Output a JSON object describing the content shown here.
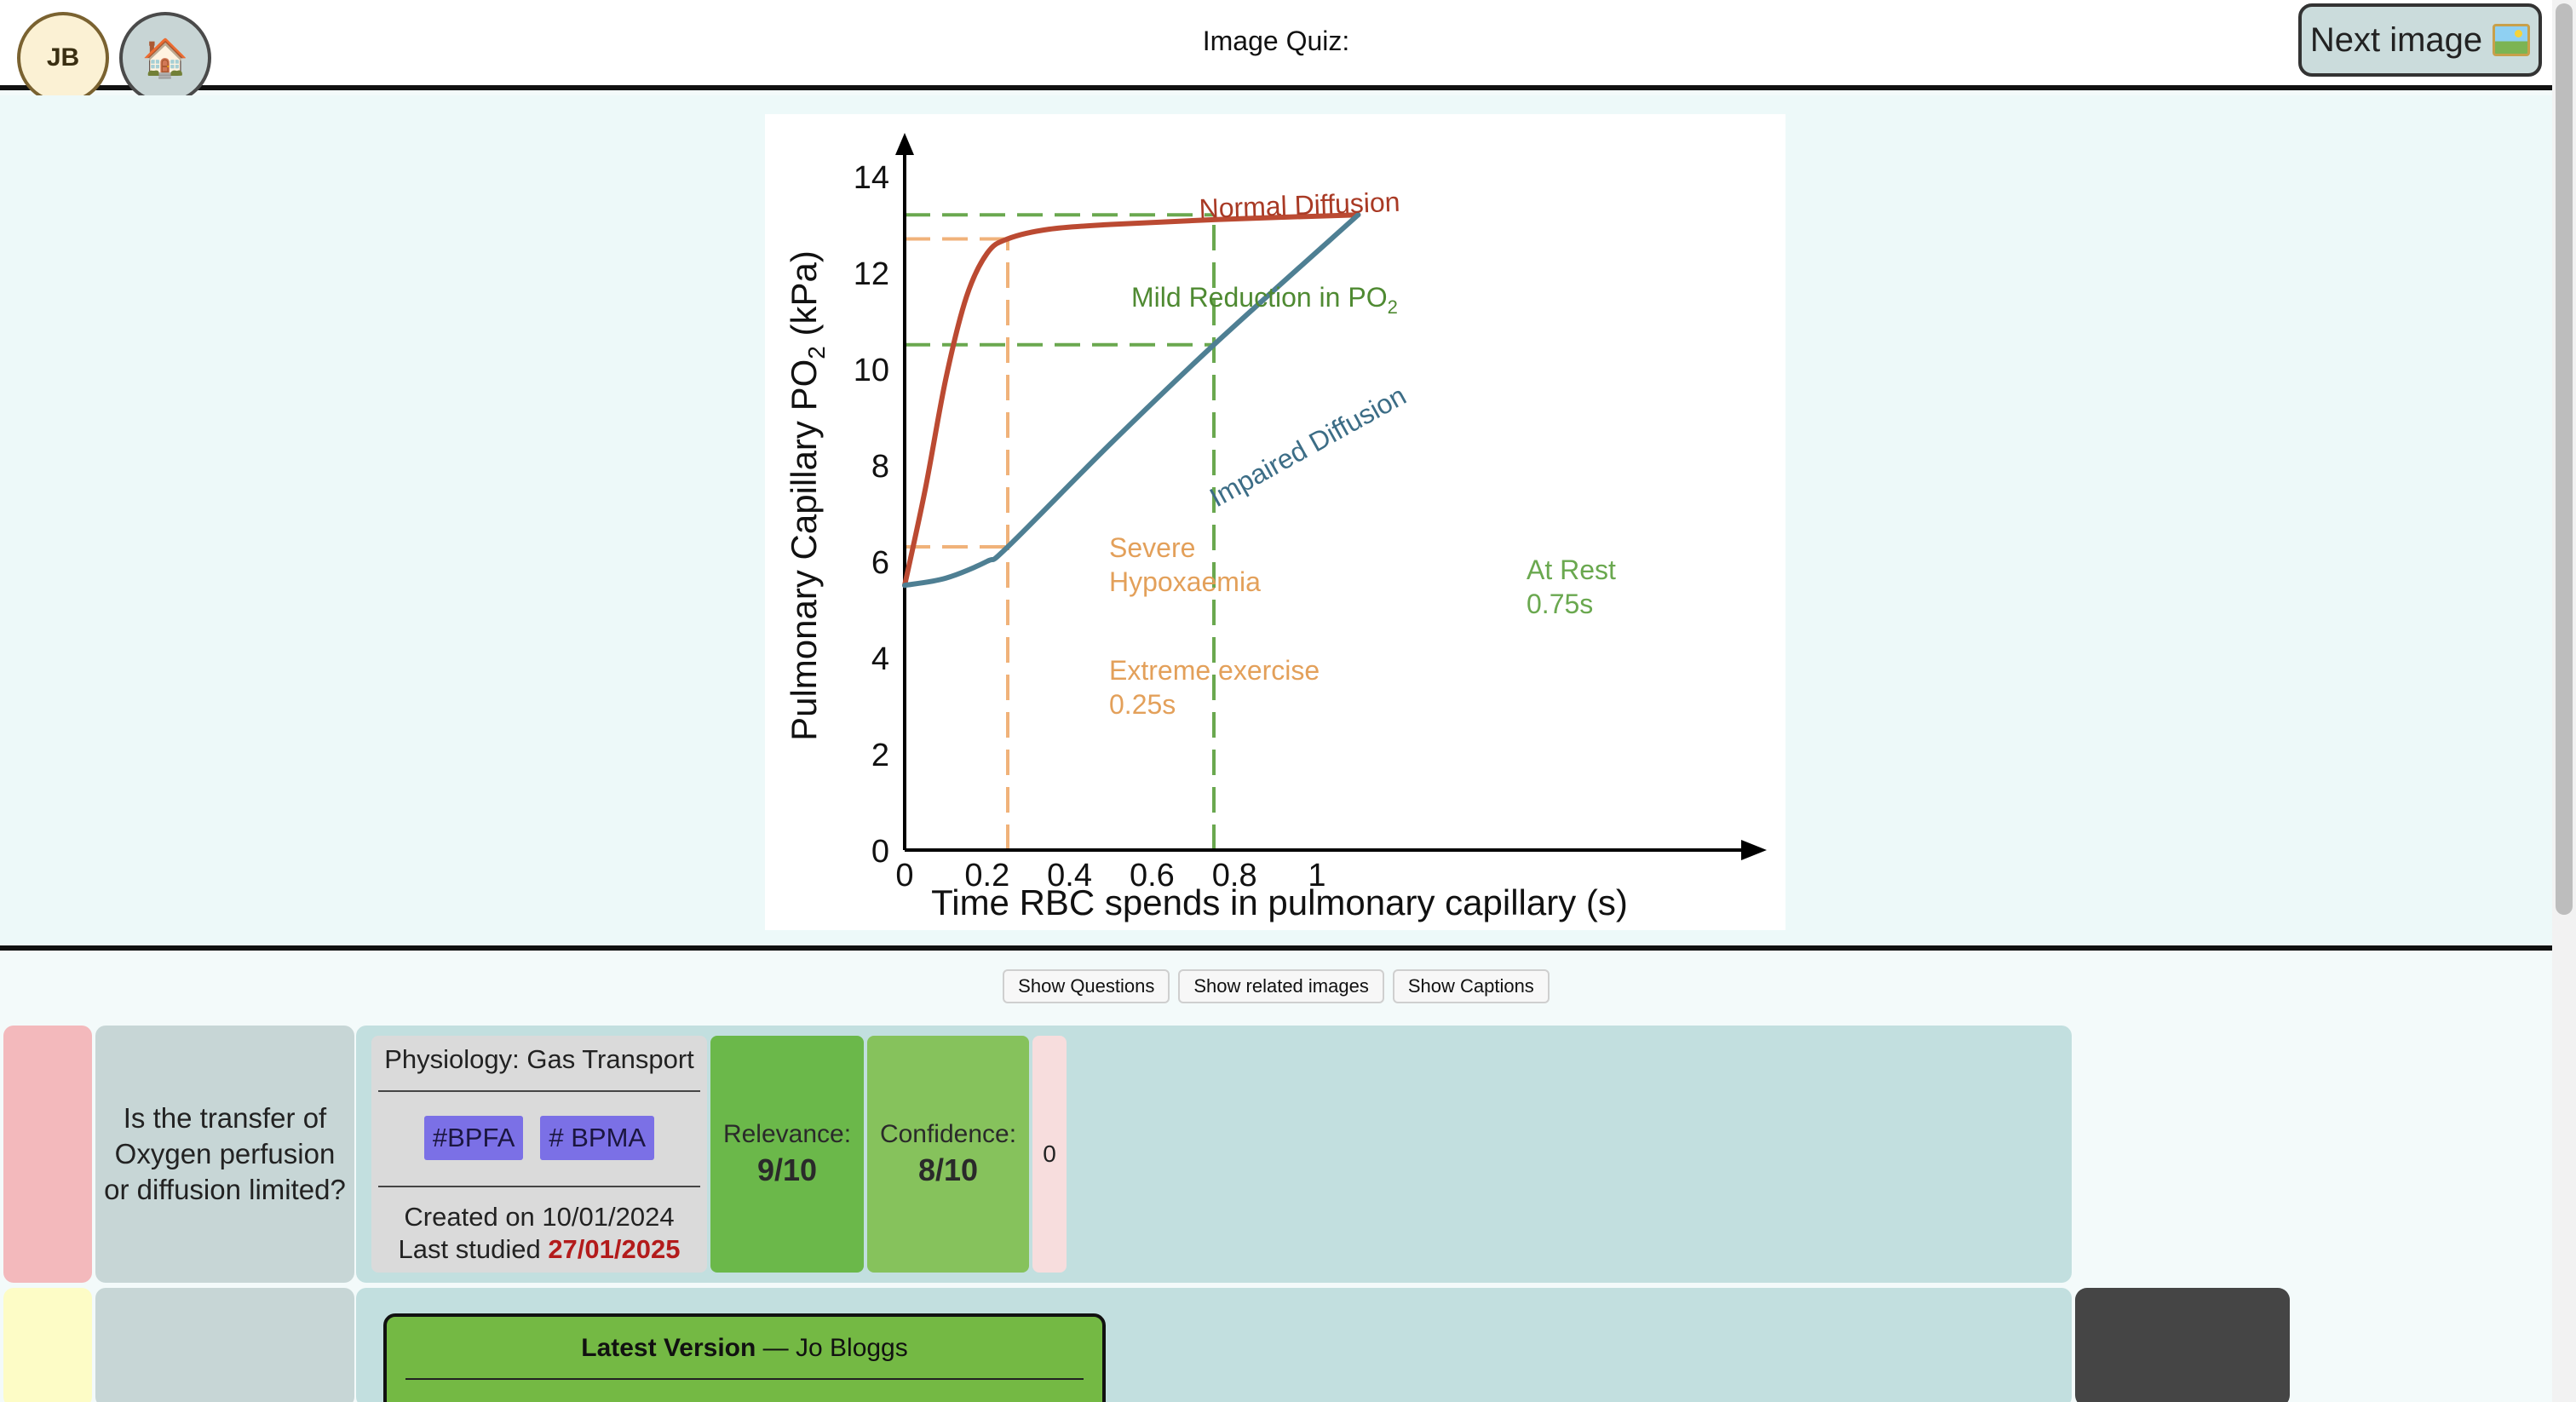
{
  "header": {
    "avatar_initials": "JB",
    "home_icon": "house-emoji",
    "title": "Image Quiz:",
    "next_button_label": "Next image",
    "next_button_icon": "framed-picture-emoji"
  },
  "chart": {
    "y_axis_title": "Pulmonary Capillary PO",
    "y_axis_sub": "2",
    "y_axis_unit": "(kPa)",
    "x_axis_title": "Time RBC spends in pulmonary capillary (s)",
    "y_ticks": [
      "0",
      "2",
      "4",
      "6",
      "8",
      "10",
      "12",
      "14"
    ],
    "x_ticks": [
      "0",
      "0.2",
      "0.4",
      "0.6",
      "0.8",
      "1"
    ],
    "label_normal": "Normal Diffusion",
    "label_mild": "Mild Reduction in PO",
    "label_mild_sub": "2",
    "label_impaired": "Impaired Diffusion",
    "label_severe_1": "Severe",
    "label_severe_2": "Hypoxaemia",
    "label_rest_1": "At Rest",
    "label_rest_2": "0.75s",
    "label_exercise_1": "Extreme exercise",
    "label_exercise_2": "0.25s"
  },
  "chart_data": {
    "type": "line",
    "title": "",
    "xlabel": "Time RBC spends in pulmonary capillary (s)",
    "ylabel": "Pulmonary Capillary PO2 (kPa)",
    "xlim": [
      0,
      1.1
    ],
    "ylim": [
      0,
      14
    ],
    "series": [
      {
        "name": "Normal Diffusion",
        "color": "#bb4a32",
        "x": [
          0,
          0.05,
          0.1,
          0.15,
          0.2,
          0.25,
          0.35,
          0.5,
          0.75,
          1.1
        ],
        "y": [
          5.5,
          7.5,
          9.8,
          11.5,
          12.4,
          12.7,
          12.9,
          13.0,
          13.1,
          13.2
        ]
      },
      {
        "name": "Impaired Diffusion",
        "color": "#4e7f93",
        "x": [
          0,
          0.1,
          0.2,
          0.25,
          0.5,
          0.75,
          1.1
        ],
        "y": [
          5.5,
          5.65,
          6.0,
          6.3,
          8.45,
          10.5,
          13.2
        ]
      }
    ],
    "reference_lines": [
      {
        "axis": "y",
        "value": 13.2,
        "color": "#6aa84f"
      },
      {
        "axis": "y",
        "value": 12.7,
        "color": "#f0b27a"
      },
      {
        "axis": "y",
        "value": 10.5,
        "color": "#6aa84f"
      },
      {
        "axis": "y",
        "value": 6.3,
        "color": "#f0b27a"
      },
      {
        "axis": "x",
        "value": 0.25,
        "color": "#f0b27a"
      },
      {
        "axis": "x",
        "value": 0.75,
        "color": "#6aa84f"
      }
    ]
  },
  "controls": {
    "show_questions": "Show Questions",
    "show_related": "Show related images",
    "show_captions": "Show Captions"
  },
  "card": {
    "question": "Is the transfer of Oxygen perfusion or diffusion limited?",
    "topic": "Physiology: Gas Transport",
    "tags": [
      "#BPFA",
      "# BPMA"
    ],
    "created_label": "Created on 10/01/2024",
    "last_studied_label": "Last studied",
    "last_studied_date": "27/01/2025",
    "relevance_label": "Relevance:",
    "relevance_value": "9/10",
    "confidence_label": "Confidence:",
    "confidence_value": "8/10",
    "count": "0"
  },
  "version": {
    "title_bold": "Latest Version",
    "title_rest": " — Jo Bloggs"
  },
  "colors": {
    "normal_curve": "#bb4a32",
    "impaired_curve": "#4e7f93",
    "green_dash": "#6aa84f",
    "orange_dash": "#f0b27a",
    "tag_bg": "#7b70e6",
    "relevance_bg": "#6bb84a",
    "confidence_bg": "#86c25c",
    "date_red": "#b31b1b"
  }
}
